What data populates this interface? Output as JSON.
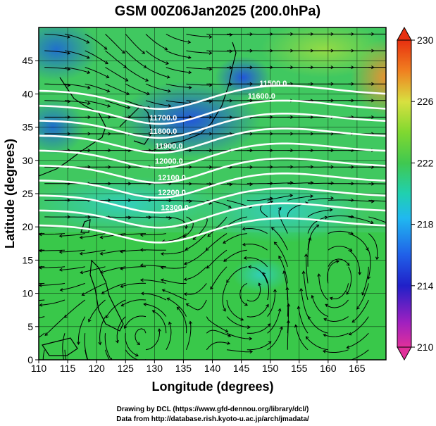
{
  "chart_data": {
    "type": "heatmap",
    "title": "GSM 00Z06Jan2025 (200.0hPa)",
    "xlabel": "Longitude (degrees)",
    "ylabel": "Latitude  (degrees)",
    "xlim": [
      110,
      170
    ],
    "ylim": [
      0,
      50
    ],
    "x_ticks": [
      110,
      115,
      120,
      125,
      130,
      135,
      140,
      145,
      150,
      155,
      160,
      165
    ],
    "y_ticks": [
      0,
      5,
      10,
      15,
      20,
      25,
      30,
      35,
      40,
      45
    ],
    "colorbar": {
      "range": [
        210,
        230
      ],
      "ticks": [
        210,
        214,
        218,
        222,
        226,
        230
      ],
      "colors": [
        "#e0309a",
        "#2020c8",
        "#20a0f0",
        "#30c860",
        "#d8e040",
        "#e83010"
      ]
    },
    "contours": {
      "color": "#ffffff",
      "levels": [
        11500,
        11600,
        11700,
        11800,
        11900,
        12000,
        12100,
        12200,
        12300,
        12400
      ],
      "labels": [
        {
          "text": "11500.0",
          "x": 150.5,
          "y": 41.2
        },
        {
          "text": "11600.0",
          "x": 148.5,
          "y": 39.3
        },
        {
          "text": "11700.0",
          "x": 131.5,
          "y": 36.0
        },
        {
          "text": "11800.0",
          "x": 131.5,
          "y": 34.0
        },
        {
          "text": "11900.0",
          "x": 132.5,
          "y": 31.8
        },
        {
          "text": "12000.0",
          "x": 132.5,
          "y": 29.5
        },
        {
          "text": "12100.0",
          "x": 133.0,
          "y": 27.0
        },
        {
          "text": "12200.0",
          "x": 133.0,
          "y": 24.8
        },
        {
          "text": "12300.0",
          "x": 133.5,
          "y": 22.5
        }
      ]
    }
  },
  "credits": {
    "line1": "Drawing by DCL (https://www.gfd-dennou.org/library/dcl/)",
    "line2": "Data from http://database.rish.kyoto-u.ac.jp/arch/jmadata/"
  }
}
